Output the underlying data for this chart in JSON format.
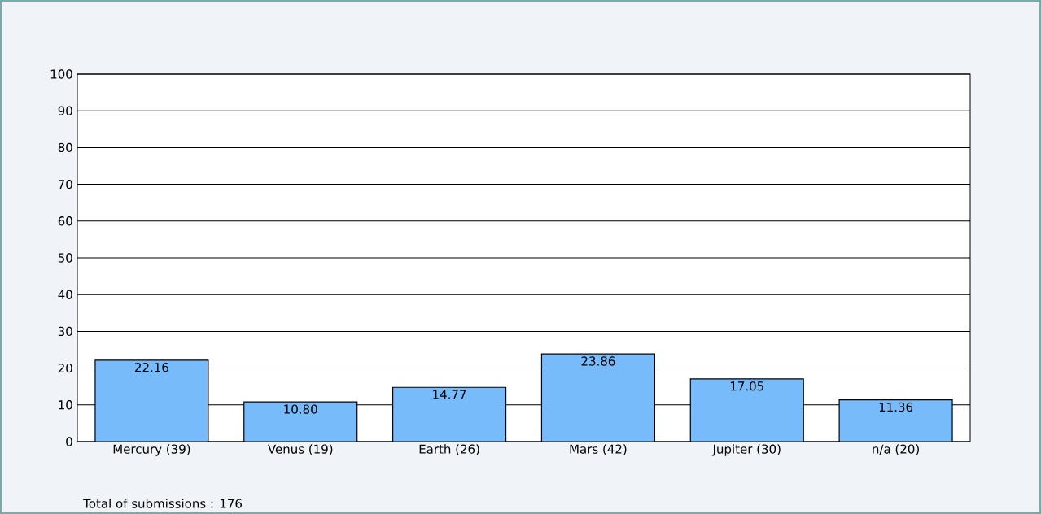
{
  "chart_data": {
    "type": "bar",
    "categories": [
      "Mercury (39)",
      "Venus (19)",
      "Earth (26)",
      "Mars (42)",
      "Jupiter (30)",
      "n/a (20)"
    ],
    "values": [
      22.16,
      10.8,
      14.77,
      23.86,
      17.05,
      11.36
    ],
    "value_labels": [
      "22.16",
      "10.80",
      "14.77",
      "23.86",
      "17.05",
      "11.36"
    ],
    "color": "#78bbfa",
    "ylim": [
      0,
      100
    ],
    "yticks": [
      0,
      10,
      20,
      30,
      40,
      50,
      60,
      70,
      80,
      90,
      100
    ],
    "grid": "y",
    "annotations": [
      "Total of submissions : 176"
    ]
  }
}
